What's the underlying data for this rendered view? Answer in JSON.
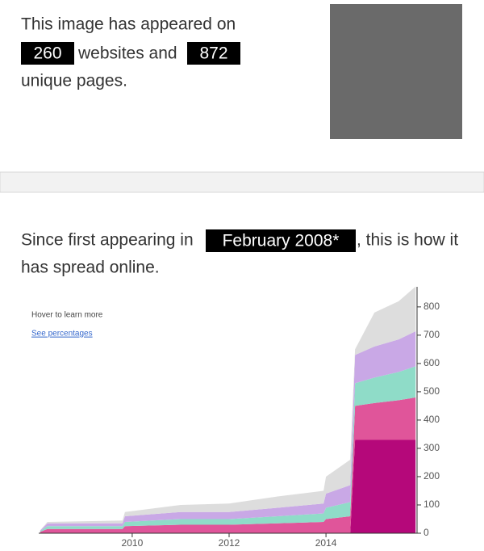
{
  "header": {
    "line1": "This image has appeared on",
    "sites": 260,
    "mid": "websites and",
    "pages": 872,
    "tail": "unique pages."
  },
  "spread": {
    "before": "Since first appearing in",
    "date": "February 2008*",
    "after": ", this is how it",
    "line2": "has spread online."
  },
  "hover_box": {
    "hint": "Hover to learn more",
    "link": "See percentages"
  },
  "chart_data": {
    "type": "stacked_area",
    "x": [
      2008.1,
      2008.25,
      2009.8,
      2009.85,
      2011.0,
      2012.0,
      2013.0,
      2013.95,
      2014.0,
      2014.5,
      2014.6,
      2015.0,
      2015.5,
      2015.85
    ],
    "series": [
      {
        "color": "#b5087a",
        "values": [
          0,
          0,
          0,
          0,
          0,
          0,
          0,
          0,
          0,
          0,
          330,
          330,
          330,
          330
        ]
      },
      {
        "color": "#e0559a",
        "values": [
          5,
          15,
          15,
          25,
          30,
          30,
          35,
          40,
          50,
          60,
          120,
          130,
          140,
          150
        ]
      },
      {
        "color": "#8fdcc8",
        "values": [
          3,
          10,
          10,
          15,
          20,
          20,
          25,
          30,
          40,
          50,
          80,
          90,
          100,
          110
        ]
      },
      {
        "color": "#c9a8e6",
        "values": [
          2,
          10,
          10,
          20,
          25,
          25,
          30,
          35,
          50,
          60,
          100,
          110,
          115,
          124
        ]
      },
      {
        "color": "#dddddd",
        "values": [
          0,
          5,
          10,
          15,
          25,
          30,
          40,
          45,
          60,
          90,
          20,
          120,
          135,
          158
        ]
      }
    ],
    "xlim": [
      2008.07,
      2015.88
    ],
    "xticks": [
      2010,
      2012,
      2014
    ],
    "ylim": [
      0,
      871
    ],
    "yticks": [
      0,
      100,
      200,
      300,
      400,
      500,
      600,
      700,
      800
    ]
  }
}
